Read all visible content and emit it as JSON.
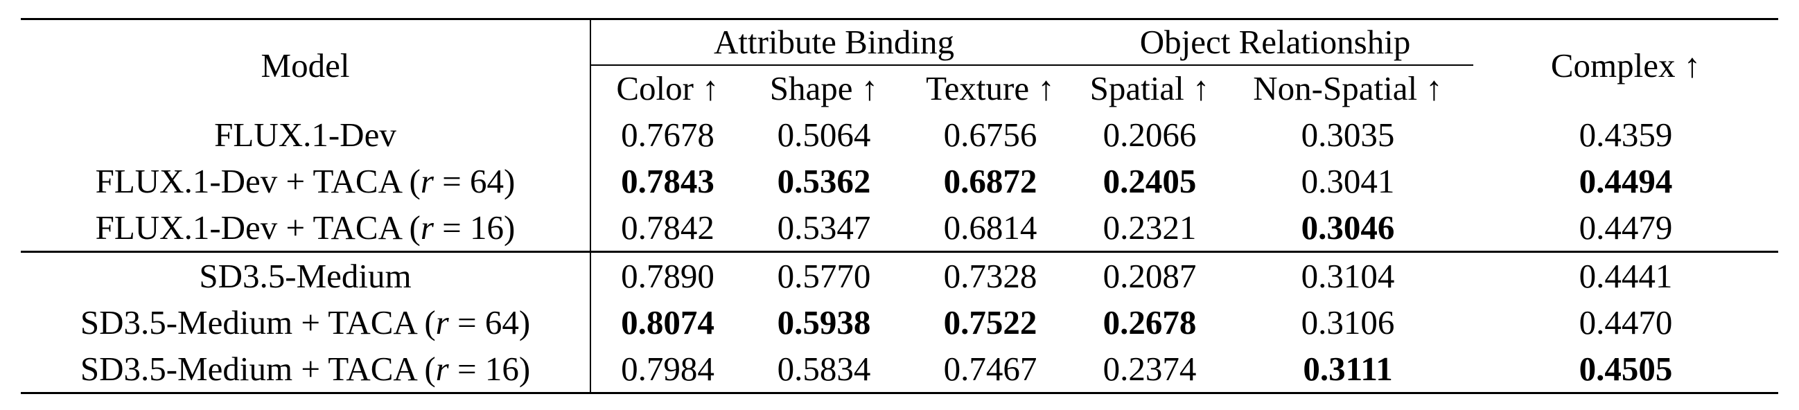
{
  "headers": {
    "model": "Model",
    "group_attribute": "Attribute Binding",
    "group_object": "Object Relationship",
    "complex": "Complex ↑",
    "color": "Color ↑",
    "shape": "Shape ↑",
    "texture": "Texture ↑",
    "spatial": "Spatial ↑",
    "non_spatial": "Non-Spatial ↑"
  },
  "rows": [
    {
      "model_base": "FLUX.1-Dev",
      "model_suffix": "",
      "values": [
        "0.7678",
        "0.5064",
        "0.6756",
        "0.2066",
        "0.3035",
        "0.4359"
      ],
      "bold": [
        false,
        false,
        false,
        false,
        false,
        false
      ]
    },
    {
      "model_base": "FLUX.1-Dev + TACA (",
      "model_var": "r",
      "model_eq": " = 64)",
      "values": [
        "0.7843",
        "0.5362",
        "0.6872",
        "0.2405",
        "0.3041",
        "0.4494"
      ],
      "bold": [
        true,
        true,
        true,
        true,
        false,
        true
      ]
    },
    {
      "model_base": "FLUX.1-Dev + TACA (",
      "model_var": "r",
      "model_eq": " = 16)",
      "values": [
        "0.7842",
        "0.5347",
        "0.6814",
        "0.2321",
        "0.3046",
        "0.4479"
      ],
      "bold": [
        false,
        false,
        false,
        false,
        true,
        false
      ]
    },
    {
      "model_base": "SD3.5-Medium",
      "model_suffix": "",
      "values": [
        "0.7890",
        "0.5770",
        "0.7328",
        "0.2087",
        "0.3104",
        "0.4441"
      ],
      "bold": [
        false,
        false,
        false,
        false,
        false,
        false
      ]
    },
    {
      "model_base": "SD3.5-Medium + TACA (",
      "model_var": "r",
      "model_eq": " = 64)",
      "values": [
        "0.8074",
        "0.5938",
        "0.7522",
        "0.2678",
        "0.3106",
        "0.4470"
      ],
      "bold": [
        true,
        true,
        true,
        true,
        false,
        false
      ]
    },
    {
      "model_base": "SD3.5-Medium + TACA (",
      "model_var": "r",
      "model_eq": " = 16)",
      "values": [
        "0.7984",
        "0.5834",
        "0.7467",
        "0.2374",
        "0.3111",
        "0.4505"
      ],
      "bold": [
        false,
        false,
        false,
        false,
        true,
        true
      ]
    }
  ]
}
